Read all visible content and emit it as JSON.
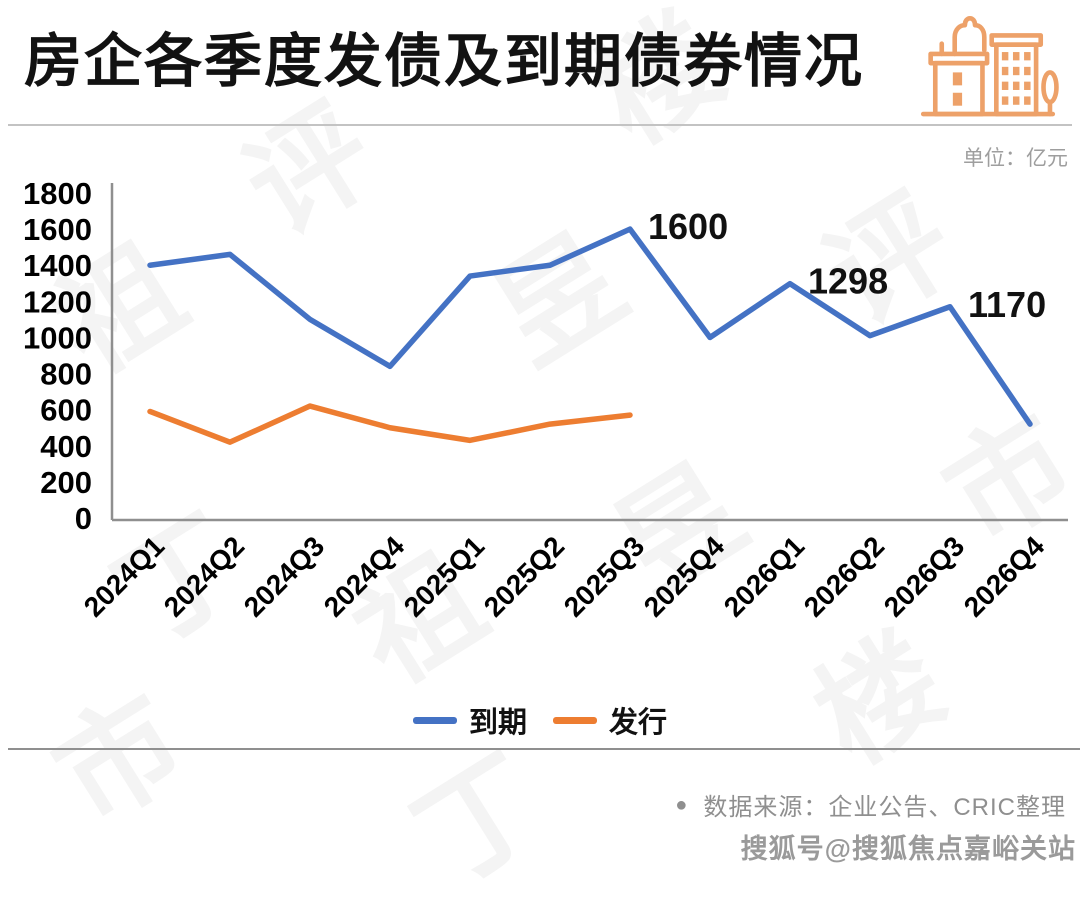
{
  "header": {
    "title": "房企各季度发债及到期债券情况",
    "unit_label": "单位：亿元"
  },
  "chart_data": {
    "type": "line",
    "categories": [
      "2024Q1",
      "2024Q2",
      "2024Q3",
      "2024Q4",
      "2025Q1",
      "2025Q2",
      "2025Q3",
      "2025Q4",
      "2026Q1",
      "2026Q2",
      "2026Q3",
      "2026Q4"
    ],
    "series": [
      {
        "name": "到期",
        "color": "#4472C4",
        "values": [
          1400,
          1460,
          1100,
          840,
          1340,
          1400,
          1600,
          1000,
          1298,
          1010,
          1170,
          520
        ]
      },
      {
        "name": "发行",
        "color": "#ED7D31",
        "values": [
          590,
          420,
          620,
          500,
          430,
          520,
          570
        ]
      }
    ],
    "annotations": [
      {
        "series": 0,
        "index": 6,
        "text": "1600"
      },
      {
        "series": 0,
        "index": 8,
        "text": "1298"
      },
      {
        "series": 0,
        "index": 10,
        "text": "1170"
      }
    ],
    "y_ticks": [
      0,
      200,
      400,
      600,
      800,
      1000,
      1200,
      1400,
      1600,
      1800
    ],
    "ylim": [
      0,
      1800
    ],
    "title": "房企各季度发债及到期债券情况",
    "xlabel": "",
    "ylabel": "",
    "unit": "亿元",
    "grid": false,
    "legend_position": "bottom"
  },
  "legend": {
    "items": [
      {
        "label": "到期",
        "color": "#4472C4"
      },
      {
        "label": "发行",
        "color": "#ED7D31"
      }
    ]
  },
  "footer": {
    "source_bullet": "●",
    "source_text": "数据来源：企业公告、CRIC整理",
    "watermark_account": "搜狐号@搜狐焦点嘉峪关站"
  },
  "watermark": {
    "chars": [
      "祖",
      "评",
      "昱",
      "楼",
      "评",
      "市",
      "丁",
      "祖",
      "昱",
      "楼",
      "丁",
      "市"
    ]
  },
  "colors": {
    "maturity_line": "#4472C4",
    "issuance_line": "#ED7D31",
    "axis": "#8f8f8f",
    "icon_orange": "#EDA169",
    "muted_text": "#9e9e9e"
  }
}
